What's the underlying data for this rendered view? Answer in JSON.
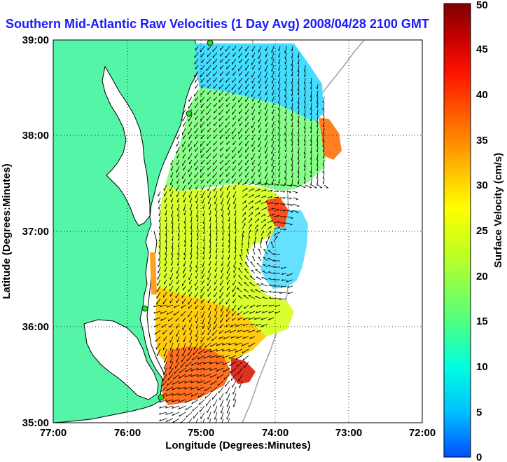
{
  "title": "Southern Mid-Atlantic Raw Velocities (1 Day Avg) 2008/04/28 2100 GMT",
  "map": {
    "x_axis_label": "Longitude (Degrees:Minutes)",
    "y_axis_label": "Latitude (Degrees:Minutes)",
    "x_ticks": [
      "77:00",
      "76:00",
      "75:00",
      "74:00",
      "73:00",
      "72:00"
    ],
    "y_ticks": [
      "39:00",
      "38:00",
      "37:00",
      "36:00",
      "35:00"
    ],
    "lon_range": [
      -77,
      -72
    ],
    "lat_range": [
      35,
      39
    ],
    "grid": "dotted",
    "land_color": "#55f5a8",
    "coast_color": "#000000",
    "bathymetry_color": "#a0a0a0",
    "station_color": "#22dd22"
  },
  "colorbar": {
    "label": "Surface Velocity (cm/s)",
    "ticks": [
      "0",
      "5",
      "10",
      "15",
      "20",
      "25",
      "30",
      "35",
      "40",
      "45",
      "50"
    ],
    "min": 0,
    "max": 50,
    "colormap": [
      "#0050ff",
      "#00c0ff",
      "#00ffe0",
      "#50ff80",
      "#c0ff20",
      "#ffff00",
      "#ffb000",
      "#ff6000",
      "#ff1000",
      "#c00000",
      "#800000"
    ]
  }
}
